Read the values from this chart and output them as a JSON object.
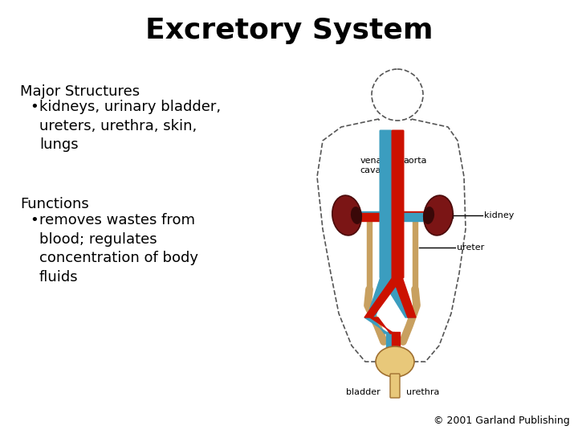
{
  "title": "Excretory System",
  "title_fontsize": 26,
  "title_fontweight": "bold",
  "background_color": "#ffffff",
  "text_color": "#000000",
  "section1_header": "Major Structures",
  "section1_bullet": "kidneys, urinary bladder,\nureters, urethra, skin,\nlungs",
  "section2_header": "Functions",
  "section2_bullet": "removes wastes from\nblood; regulates\nconcentration of body\nfluids",
  "header_fontsize": 13,
  "bullet_fontsize": 13,
  "copyright_text": "© 2001 Garland Publishing",
  "copyright_fontsize": 9,
  "label_vena_cava": "vena\ncava",
  "label_aorta": "aorta",
  "label_kidney": "kidney",
  "label_ureter": "ureter",
  "label_bladder": "bladder",
  "label_urethra": "urethra",
  "body_outline_color": "#555555",
  "kidney_color": "#7B1515",
  "aorta_color": "#CC1100",
  "vena_cava_color": "#3B9DBF",
  "ureter_color": "#C8A060",
  "bladder_color": "#E8C87A",
  "label_fontsize": 8
}
